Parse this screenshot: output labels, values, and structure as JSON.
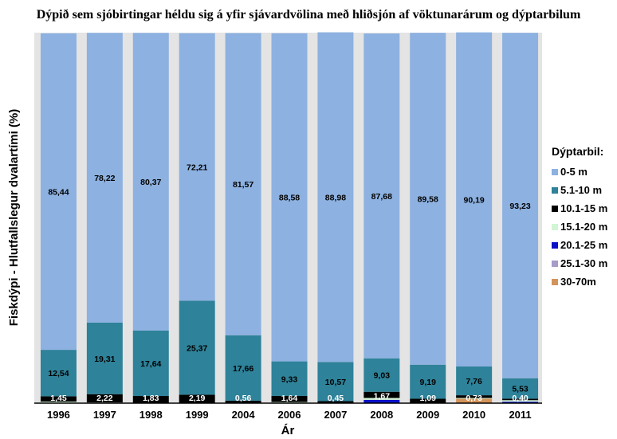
{
  "chart_data": {
    "type": "bar",
    "stacked": true,
    "percent_stacked": true,
    "title": "Dýpið sem sjóbirtingar héldu sig á yfir sjávardvölina með hliðsjón af vöktunarárum og dýptarbilum",
    "xlabel": "Ár",
    "ylabel": "Fiskdýpi - Hlutfallslegur dvalartími (%)",
    "legend_title": "Dýptarbil:",
    "legend_position": "right",
    "ylim": [
      0,
      100
    ],
    "grid": false,
    "categories": [
      "1996",
      "1997",
      "1998",
      "1999",
      "2004",
      "2006",
      "2007",
      "2008",
      "2009",
      "2010",
      "2011"
    ],
    "series": [
      {
        "name": "30-70m",
        "color": "#d4935a",
        "values": [
          0,
          0,
          0,
          0,
          0,
          0,
          0,
          0,
          0,
          1.2,
          0
        ]
      },
      {
        "name": "25.1-30 m",
        "color": "#a79bc9",
        "values": [
          0,
          0,
          0,
          0,
          0,
          0,
          0,
          0,
          0,
          0,
          0
        ]
      },
      {
        "name": "20.1-25 m",
        "color": "#0a10c8",
        "values": [
          0,
          0,
          0,
          0,
          0,
          0,
          0,
          0.9,
          0,
          0,
          0.4
        ]
      },
      {
        "name": "15.1-20 m",
        "color": "#d2f5d4",
        "values": [
          0.4,
          0.2,
          0.1,
          0.1,
          0.1,
          0.3,
          0.1,
          0.5,
          0.1,
          0.2,
          0.4
        ]
      },
      {
        "name": "10.1-15 m",
        "color": "#000000",
        "values": [
          1.45,
          2.22,
          1.83,
          2.19,
          0.56,
          1.64,
          0.45,
          1.67,
          1.09,
          0.73,
          0.4
        ]
      },
      {
        "name": "5.1-10 m",
        "color": "#2e8299",
        "values": [
          12.54,
          19.31,
          17.64,
          25.37,
          17.66,
          9.33,
          10.57,
          9.03,
          9.19,
          7.76,
          5.53
        ]
      },
      {
        "name": "0-5 m",
        "color": "#8db1e0",
        "values": [
          85.44,
          78.22,
          80.37,
          72.21,
          81.57,
          88.58,
          88.98,
          87.68,
          89.58,
          90.19,
          93.23
        ]
      }
    ],
    "data_labels": {
      "0-5 m": [
        "85,44",
        "78,22",
        "80,37",
        "72,21",
        "81,57",
        "88,58",
        "88,98",
        "87,68",
        "89,58",
        "90,19",
        "93,23"
      ],
      "5.1-10 m": [
        "12,54",
        "19,31",
        "17,64",
        "25,37",
        "17,66",
        "9,33",
        "10,57",
        "9,03",
        "9,19",
        "7,76",
        "5,53"
      ],
      "10.1-15 m": [
        "1,45",
        "2,22",
        "1,83",
        "2,19",
        "0,56",
        "1,64",
        "0,45",
        "1,67",
        "1,09",
        "0,73",
        "0,40"
      ]
    },
    "legend_entries": [
      {
        "name": "0-5 m",
        "color": "#8db1e0"
      },
      {
        "name": "5.1-10 m",
        "color": "#2e8299"
      },
      {
        "name": "10.1-15 m",
        "color": "#000000"
      },
      {
        "name": "15.1-20 m",
        "color": "#d2f5d4"
      },
      {
        "name": "20.1-25 m",
        "color": "#0a10c8"
      },
      {
        "name": "25.1-30 m",
        "color": "#a79bc9"
      },
      {
        "name": "30-70m",
        "color": "#d4935a"
      }
    ]
  }
}
